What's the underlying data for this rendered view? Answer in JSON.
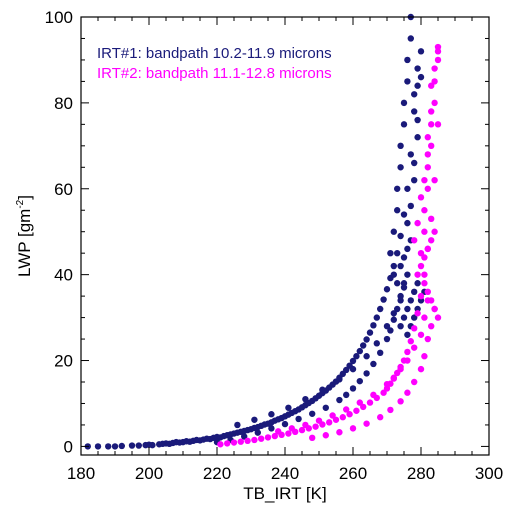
{
  "chart_data": {
    "type": "scatter",
    "title": "",
    "xlabel": "TB_IRT [K]",
    "ylabel_main": "LWP [gm",
    "ylabel_sup": "-2",
    "ylabel_close": "]",
    "xlim": [
      180,
      300
    ],
    "ylim": [
      -2,
      100
    ],
    "x_ticks": [
      180,
      200,
      220,
      240,
      260,
      280,
      300
    ],
    "x_tick_labels": [
      "180",
      "200",
      "220",
      "240",
      "260",
      "280",
      "300"
    ],
    "y_ticks": [
      0,
      20,
      40,
      60,
      80,
      100
    ],
    "y_tick_labels": [
      "0",
      "20",
      "40",
      "60",
      "80",
      "100"
    ],
    "grid": false,
    "legend_position": "top-left",
    "series": [
      {
        "name": "IRT#1: bandpath 10.2-11.9 microns",
        "color": "#1a1a7a",
        "points": [
          [
            182,
            0
          ],
          [
            185,
            0
          ],
          [
            188,
            0
          ],
          [
            190,
            0
          ],
          [
            192,
            0.1
          ],
          [
            195,
            0.2
          ],
          [
            197,
            0.2
          ],
          [
            199,
            0.3
          ],
          [
            200,
            0.4
          ],
          [
            201,
            0.3
          ],
          [
            203,
            0.5
          ],
          [
            204,
            0.6
          ],
          [
            205,
            0.7
          ],
          [
            206,
            0.6
          ],
          [
            207,
            0.8
          ],
          [
            208,
            1.0
          ],
          [
            209,
            0.9
          ],
          [
            210,
            1.0
          ],
          [
            211,
            1.2
          ],
          [
            212,
            1.1
          ],
          [
            213,
            1.3
          ],
          [
            214,
            1.5
          ],
          [
            215,
            1.4
          ],
          [
            216,
            1.6
          ],
          [
            217,
            1.8
          ],
          [
            218,
            1.7
          ],
          [
            219,
            2.0
          ],
          [
            220,
            2.2
          ],
          [
            221,
            2.1
          ],
          [
            222,
            2.4
          ],
          [
            223,
            2.6
          ],
          [
            224,
            2.8
          ],
          [
            225,
            3.0
          ],
          [
            226,
            3.2
          ],
          [
            227,
            3.4
          ],
          [
            228,
            3.6
          ],
          [
            229,
            3.8
          ],
          [
            230,
            4.0
          ],
          [
            231,
            4.3
          ],
          [
            232,
            4.5
          ],
          [
            233,
            4.8
          ],
          [
            234,
            5.1
          ],
          [
            235,
            5.3
          ],
          [
            236,
            5.6
          ],
          [
            237,
            6.0
          ],
          [
            238,
            6.3
          ],
          [
            239,
            6.6
          ],
          [
            240,
            7.0
          ],
          [
            241,
            7.4
          ],
          [
            242,
            7.8
          ],
          [
            243,
            8.2
          ],
          [
            244,
            8.6
          ],
          [
            245,
            9.1
          ],
          [
            246,
            9.6
          ],
          [
            247,
            10.1
          ],
          [
            248,
            10.6
          ],
          [
            249,
            11.2
          ],
          [
            250,
            11.8
          ],
          [
            251,
            12.4
          ],
          [
            252,
            13.0
          ],
          [
            253,
            13.7
          ],
          [
            254,
            14.4
          ],
          [
            255,
            15.1
          ],
          [
            256,
            16.0
          ],
          [
            257,
            16.9
          ],
          [
            258,
            17.8
          ],
          [
            259,
            18.8
          ],
          [
            260,
            19.9
          ],
          [
            261,
            21.0
          ],
          [
            262,
            22.2
          ],
          [
            263,
            23.5
          ],
          [
            264,
            24.9
          ],
          [
            265,
            26.5
          ],
          [
            266,
            28.2
          ],
          [
            267,
            30.0
          ],
          [
            268,
            32.0
          ],
          [
            269,
            34.2
          ],
          [
            270,
            36.6
          ],
          [
            271,
            39.2
          ],
          [
            272,
            42.0
          ],
          [
            273,
            45.0
          ],
          [
            274,
            49.0
          ],
          [
            275,
            54.0
          ],
          [
            276,
            60.0
          ],
          [
            277,
            68.0
          ],
          [
            278,
            78.0
          ],
          [
            279,
            88.0
          ],
          [
            220,
            1.0
          ],
          [
            224,
            1.5
          ],
          [
            228,
            2.3
          ],
          [
            232,
            3.2
          ],
          [
            236,
            4.2
          ],
          [
            240,
            5.2
          ],
          [
            244,
            6.4
          ],
          [
            248,
            7.6
          ],
          [
            252,
            9.0
          ],
          [
            256,
            10.8
          ],
          [
            258,
            12.0
          ],
          [
            260,
            13.5
          ],
          [
            262,
            15.2
          ],
          [
            264,
            17.0
          ],
          [
            266,
            19.2
          ],
          [
            268,
            21.8
          ],
          [
            270,
            25.0
          ],
          [
            271,
            27.0
          ],
          [
            272,
            29.5
          ],
          [
            273,
            32.0
          ],
          [
            274,
            35.0
          ],
          [
            275,
            38.0
          ],
          [
            226,
            5.0
          ],
          [
            231,
            6.2
          ],
          [
            236,
            7.5
          ],
          [
            241,
            9.0
          ],
          [
            246,
            11.0
          ],
          [
            251,
            13.2
          ],
          [
            256,
            15.6
          ],
          [
            260,
            18.0
          ],
          [
            264,
            21.0
          ],
          [
            267,
            24.0
          ],
          [
            270,
            28.0
          ],
          [
            272,
            31.0
          ],
          [
            274,
            34.0
          ],
          [
            275,
            37.0
          ],
          [
            276,
            40.0
          ],
          [
            271,
            45
          ],
          [
            272,
            50
          ],
          [
            273,
            55
          ],
          [
            273,
            60
          ],
          [
            274,
            65
          ],
          [
            274,
            70
          ],
          [
            275,
            75
          ],
          [
            275,
            80
          ],
          [
            276,
            85
          ],
          [
            276,
            90
          ],
          [
            277,
            95
          ],
          [
            277,
            100
          ],
          [
            272,
            40
          ],
          [
            273,
            38
          ],
          [
            274,
            42
          ],
          [
            275,
            44
          ],
          [
            276,
            46
          ],
          [
            277,
            48
          ],
          [
            276,
            52
          ],
          [
            277,
            56
          ],
          [
            278,
            62
          ],
          [
            278,
            66
          ],
          [
            279,
            72
          ],
          [
            279,
            76
          ],
          [
            278,
            82
          ],
          [
            279,
            84
          ],
          [
            280,
            86
          ],
          [
            280,
            92
          ],
          [
            274,
            28
          ],
          [
            275,
            30
          ],
          [
            276,
            32
          ],
          [
            277,
            34
          ],
          [
            278,
            36
          ],
          [
            279,
            38
          ],
          [
            276,
            26
          ],
          [
            277,
            28
          ],
          [
            278,
            30
          ],
          [
            279,
            32
          ],
          [
            280,
            34
          ],
          [
            281,
            36
          ]
        ]
      },
      {
        "name": "IRT#2: bandpath 11.1-12.8 microns",
        "color": "#ff00ff",
        "points": [
          [
            221,
            0.5
          ],
          [
            223,
            0.7
          ],
          [
            225,
            0.9
          ],
          [
            227,
            1.1
          ],
          [
            229,
            1.3
          ],
          [
            231,
            1.5
          ],
          [
            233,
            1.8
          ],
          [
            235,
            2.1
          ],
          [
            237,
            2.4
          ],
          [
            239,
            2.7
          ],
          [
            241,
            3.0
          ],
          [
            243,
            3.4
          ],
          [
            245,
            3.8
          ],
          [
            247,
            4.2
          ],
          [
            249,
            4.6
          ],
          [
            251,
            5.1
          ],
          [
            253,
            5.6
          ],
          [
            255,
            6.2
          ],
          [
            257,
            6.8
          ],
          [
            259,
            7.5
          ],
          [
            261,
            8.3
          ],
          [
            263,
            9.2
          ],
          [
            265,
            10.2
          ],
          [
            267,
            11.3
          ],
          [
            269,
            12.5
          ],
          [
            270,
            13.5
          ],
          [
            271,
            14.6
          ],
          [
            272,
            15.8
          ],
          [
            273,
            17.1
          ],
          [
            274,
            18.5
          ],
          [
            275,
            20.0
          ],
          [
            276,
            22.0
          ],
          [
            277,
            24.5
          ],
          [
            278,
            27.5
          ],
          [
            279,
            31.0
          ],
          [
            280,
            35.0
          ],
          [
            281,
            40.0
          ],
          [
            282,
            46.0
          ],
          [
            283,
            53.0
          ],
          [
            284,
            62.0
          ],
          [
            285,
            75.0
          ],
          [
            285,
            92.0
          ],
          [
            238,
            3.5
          ],
          [
            242,
            4.2
          ],
          [
            246,
            5.0
          ],
          [
            250,
            6.0
          ],
          [
            254,
            7.2
          ],
          [
            258,
            8.6
          ],
          [
            262,
            10.2
          ],
          [
            266,
            12.0
          ],
          [
            270,
            14.5
          ],
          [
            272,
            16.0
          ],
          [
            274,
            18.0
          ],
          [
            276,
            20.0
          ],
          [
            278,
            23.0
          ],
          [
            280,
            26.0
          ],
          [
            281,
            30.0
          ],
          [
            282,
            34.0
          ],
          [
            248,
            2.0
          ],
          [
            252,
            2.6
          ],
          [
            256,
            3.3
          ],
          [
            260,
            4.2
          ],
          [
            264,
            5.3
          ],
          [
            268,
            6.8
          ],
          [
            271,
            8.5
          ],
          [
            274,
            10.5
          ],
          [
            276,
            12.5
          ],
          [
            278,
            15.0
          ],
          [
            280,
            18.0
          ],
          [
            281,
            21.0
          ],
          [
            282,
            25.0
          ],
          [
            283,
            28.0
          ],
          [
            284,
            32.0
          ],
          [
            280,
            45
          ],
          [
            281,
            50
          ],
          [
            281,
            55
          ],
          [
            282,
            60
          ],
          [
            282,
            65
          ],
          [
            283,
            70
          ],
          [
            283,
            75
          ],
          [
            284,
            80
          ],
          [
            284,
            85
          ],
          [
            285,
            90
          ],
          [
            278,
            48
          ],
          [
            279,
            52
          ],
          [
            280,
            58
          ],
          [
            281,
            62
          ],
          [
            282,
            68
          ],
          [
            282,
            72
          ],
          [
            283,
            78
          ],
          [
            283,
            84
          ],
          [
            284,
            88
          ],
          [
            285,
            93
          ],
          [
            279,
            40
          ],
          [
            280,
            42
          ],
          [
            281,
            44
          ],
          [
            282,
            46
          ],
          [
            283,
            48
          ],
          [
            284,
            50
          ],
          [
            281,
            38
          ],
          [
            282,
            36
          ],
          [
            283,
            34
          ],
          [
            284,
            32
          ],
          [
            285,
            30
          ]
        ]
      }
    ]
  }
}
